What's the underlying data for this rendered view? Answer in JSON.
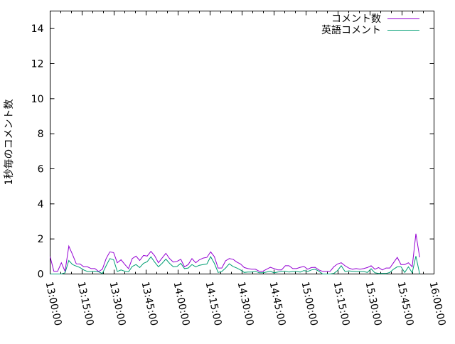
{
  "chart_data": {
    "type": "line",
    "title": "",
    "xlabel": "",
    "ylabel": "1秒毎のコメント数",
    "ylim": [
      0,
      15
    ],
    "yticks": [
      "0",
      "2",
      "4",
      "6",
      "8",
      "10",
      "12",
      "14"
    ],
    "xlim": [
      "13:00:00",
      "16:00:00"
    ],
    "xticks": [
      "13:00:00",
      "13:15:00",
      "13:30:00",
      "13:45:00",
      "14:00:00",
      "14:15:00",
      "14:30:00",
      "14:45:00",
      "15:00:00",
      "15:15:00",
      "15:30:00",
      "15:45:00",
      "16:00:00"
    ],
    "grid": false,
    "legend_position": "top-right",
    "x_start": "13:00:00",
    "x_step_seconds": 105,
    "series": [
      {
        "name": "コメント数",
        "color": "#9400d3",
        "values": [
          0.99,
          0.15,
          0.15,
          0.64,
          0.15,
          1.59,
          1.11,
          0.58,
          0.57,
          0.41,
          0.41,
          0.31,
          0.31,
          0.14,
          0.27,
          0.88,
          1.26,
          1.22,
          0.64,
          0.81,
          0.55,
          0.31,
          0.88,
          1.02,
          0.77,
          1.06,
          1.02,
          1.29,
          1.04,
          0.64,
          0.91,
          1.18,
          0.88,
          0.68,
          0.72,
          0.84,
          0.41,
          0.54,
          0.88,
          0.64,
          0.81,
          0.91,
          0.95,
          1.26,
          0.99,
          0.34,
          0.34,
          0.75,
          0.88,
          0.84,
          0.68,
          0.57,
          0.37,
          0.31,
          0.27,
          0.27,
          0.16,
          0.16,
          0.27,
          0.38,
          0.31,
          0.23,
          0.23,
          0.47,
          0.47,
          0.31,
          0.31,
          0.38,
          0.43,
          0.27,
          0.37,
          0.38,
          0.23,
          0.15,
          0.15,
          0.15,
          0.41,
          0.57,
          0.64,
          0.47,
          0.34,
          0.27,
          0.31,
          0.27,
          0.31,
          0.37,
          0.47,
          0.27,
          0.37,
          0.23,
          0.34,
          0.34,
          0.64,
          0.95,
          0.54,
          0.54,
          0.64,
          0.41,
          2.3,
          0.95
        ]
      },
      {
        "name": "英語コメント",
        "color": "#009e73",
        "values": [
          0,
          0,
          0,
          0,
          0.07,
          0.77,
          0.54,
          0.45,
          0.37,
          0.23,
          0.14,
          0.14,
          0.16,
          0.12,
          0.03,
          0.47,
          0.88,
          0.81,
          0.14,
          0.23,
          0.16,
          0.12,
          0.43,
          0.54,
          0.37,
          0.61,
          0.7,
          0.98,
          0.68,
          0.41,
          0.61,
          0.85,
          0.61,
          0.41,
          0.43,
          0.61,
          0.31,
          0.34,
          0.54,
          0.41,
          0.5,
          0.54,
          0.57,
          0.99,
          0.61,
          0.09,
          0.14,
          0.34,
          0.58,
          0.43,
          0.34,
          0.23,
          0.09,
          0.11,
          0.11,
          0.16,
          0.07,
          0.07,
          0.11,
          0.16,
          0.07,
          0.11,
          0.16,
          0.16,
          0.11,
          0.14,
          0.14,
          0.11,
          0.2,
          0.14,
          0.23,
          0.27,
          0.16,
          0,
          0,
          0,
          0.03,
          0.2,
          0.47,
          0.14,
          0.18,
          0.16,
          0.14,
          0.14,
          0.14,
          0.09,
          0.3,
          0.07,
          0.03,
          0.03,
          0.03,
          0.09,
          0.27,
          0.41,
          0.41,
          0.09,
          0.41,
          0.07,
          1.02,
          0
        ]
      }
    ]
  }
}
